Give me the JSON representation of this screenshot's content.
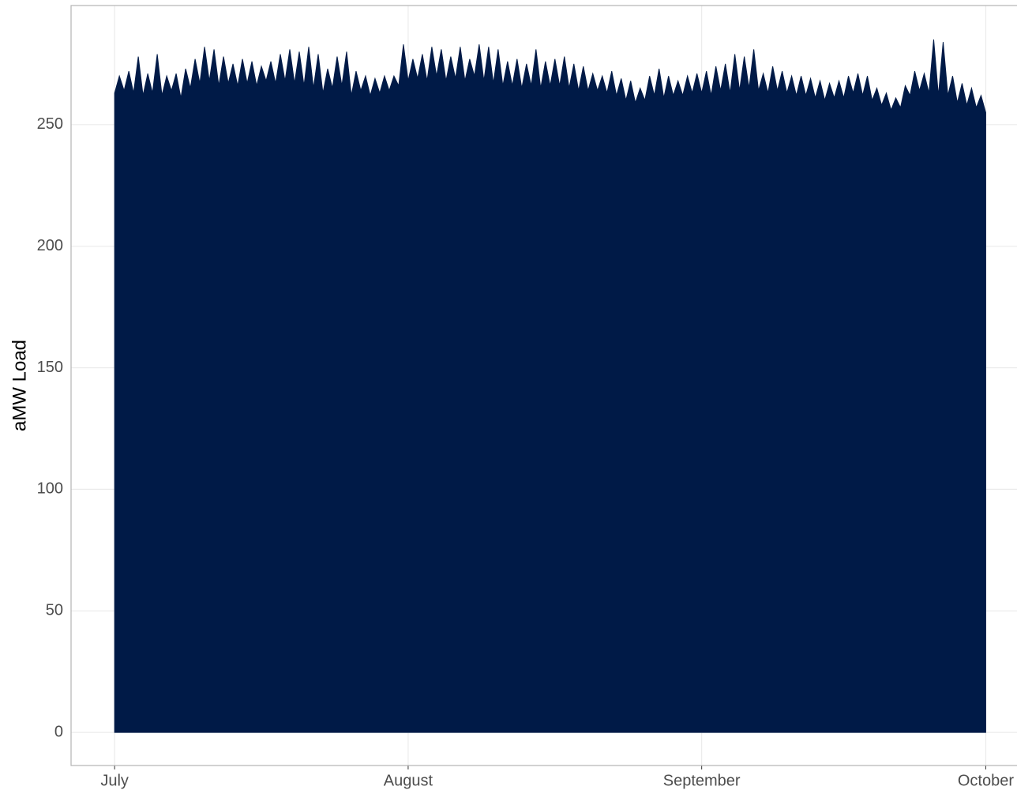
{
  "chart_data": {
    "type": "area",
    "y_label": "aMW Load",
    "color": "#001a47",
    "x": [
      0,
      0.5,
      1,
      1.5,
      2,
      2.5,
      3,
      3.5,
      4,
      4.5,
      5,
      5.5,
      6,
      6.5,
      7,
      7.5,
      8,
      8.5,
      9,
      9.5,
      10,
      10.5,
      11,
      11.5,
      12,
      12.5,
      13,
      13.5,
      14,
      14.5,
      15,
      15.5,
      16,
      16.5,
      17,
      17.5,
      18,
      18.5,
      19,
      19.5,
      20,
      20.5,
      21,
      21.5,
      22,
      22.5,
      23,
      23.5,
      24,
      24.5,
      25,
      25.5,
      26,
      26.5,
      27,
      27.5,
      28,
      28.5,
      29,
      29.5,
      30,
      30.5,
      31,
      31.5,
      32,
      32.5,
      33,
      33.5,
      34,
      34.5,
      35,
      35.5,
      36,
      36.5,
      37,
      37.5,
      38,
      38.5,
      39,
      39.5,
      40,
      40.5,
      41,
      41.5,
      42,
      42.5,
      43,
      43.5,
      44,
      44.5,
      45,
      45.5,
      46,
      46.5,
      47,
      47.5,
      48,
      48.5,
      49,
      49.5,
      50,
      50.5,
      51,
      51.5,
      52,
      52.5,
      53,
      53.5,
      54,
      54.5,
      55,
      55.5,
      56,
      56.5,
      57,
      57.5,
      58,
      58.5,
      59,
      59.5,
      60,
      60.5,
      61,
      61.5,
      62,
      62.5,
      63,
      63.5,
      64,
      64.5,
      65,
      65.5,
      66,
      66.5,
      67,
      67.5,
      68,
      68.5,
      69,
      69.5,
      70,
      70.5,
      71,
      71.5,
      72,
      72.5,
      73,
      73.5,
      74,
      74.5,
      75,
      75.5,
      76,
      76.5,
      77,
      77.5,
      78,
      78.5,
      79,
      79.5,
      80,
      80.5,
      81,
      81.5,
      82,
      82.5,
      83,
      83.5,
      84,
      84.5,
      85,
      85.5,
      86,
      86.5,
      87,
      87.5,
      88,
      88.5,
      89,
      89.5,
      90,
      90.5,
      91,
      91.5,
      92
    ],
    "values": [
      263,
      270,
      264,
      272,
      263,
      278,
      262,
      271,
      263,
      279,
      262,
      270,
      264,
      271,
      261,
      273,
      265,
      277,
      267,
      282,
      268,
      281,
      266,
      278,
      267,
      275,
      266,
      277,
      267,
      276,
      266,
      274,
      268,
      276,
      267,
      279,
      268,
      281,
      267,
      280,
      266,
      282,
      265,
      279,
      263,
      273,
      265,
      278,
      266,
      280,
      262,
      272,
      264,
      270,
      262,
      269,
      263,
      270,
      264,
      270,
      266,
      283,
      268,
      277,
      269,
      279,
      268,
      282,
      270,
      281,
      268,
      278,
      269,
      282,
      268,
      277,
      270,
      283,
      268,
      282,
      267,
      281,
      266,
      276,
      266,
      277,
      265,
      275,
      266,
      281,
      265,
      276,
      266,
      277,
      266,
      278,
      265,
      275,
      264,
      274,
      264,
      271,
      264,
      270,
      263,
      272,
      262,
      269,
      260,
      268,
      259,
      265,
      260,
      270,
      262,
      273,
      261,
      270,
      262,
      268,
      262,
      270,
      263,
      271,
      263,
      272,
      262,
      274,
      264,
      275,
      263,
      279,
      264,
      278,
      265,
      281,
      264,
      271,
      263,
      274,
      264,
      272,
      263,
      270,
      262,
      270,
      262,
      269,
      261,
      268,
      260,
      267,
      261,
      268,
      261,
      270,
      263,
      271,
      262,
      270,
      260,
      265,
      258,
      263,
      256,
      261,
      257,
      266,
      262,
      272,
      264,
      271,
      263,
      285,
      262,
      284,
      262,
      270,
      259,
      267,
      258,
      265,
      257,
      262,
      255
    ],
    "xlim": [
      -4.6,
      95.3
    ],
    "xticks": [
      {
        "value": 0,
        "label": "July"
      },
      {
        "value": 31,
        "label": "August"
      },
      {
        "value": 62,
        "label": "September"
      },
      {
        "value": 92,
        "label": "October"
      }
    ],
    "ylim": [
      -13.6,
      299
    ],
    "yticks": [
      0,
      50,
      100,
      150,
      200,
      250
    ],
    "grid": true
  }
}
